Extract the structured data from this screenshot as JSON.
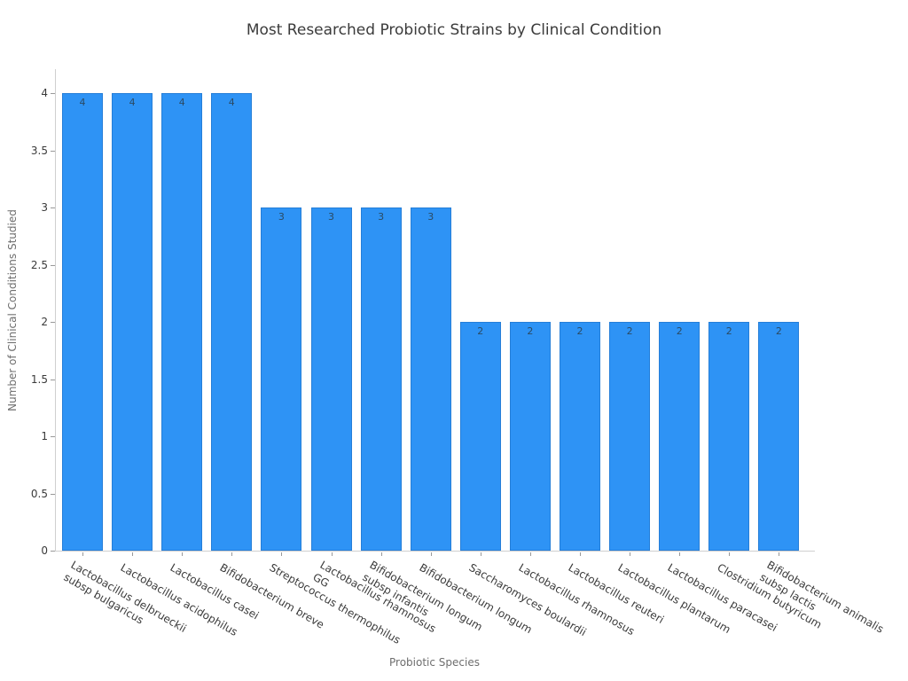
{
  "chart_data": {
    "type": "bar",
    "title": "Most Researched Probiotic Strains by Clinical Condition",
    "xlabel": "Probiotic Species",
    "ylabel": "Number of Clinical Conditions Studied",
    "categories": [
      "Lactobacillus delbrueckii\nsubsp bulgaricus",
      "Lactobacillus acidophilus",
      "Lactobacillus casei",
      "Bifidobacterium breve",
      "Streptococcus thermophilus",
      "Lactobacillus rhamnosus\nGG",
      "Bifidobacterium longum\nsubsp infantis",
      "Bifidobacterium longum",
      "Saccharomyces boulardii",
      "Lactobacillus rhamnosus",
      "Lactobacillus reuteri",
      "Lactobacillus plantarum",
      "Lactobacillus paracasei",
      "Clostridium butyricum",
      "Bifidobacterium animalis\nsubsp lactis"
    ],
    "values": [
      4,
      4,
      4,
      4,
      3,
      3,
      3,
      3,
      2,
      2,
      2,
      2,
      2,
      2,
      2
    ],
    "bar_value_labels": [
      "4",
      "4",
      "4",
      "4",
      "3",
      "3",
      "3",
      "3",
      "2",
      "2",
      "2",
      "2",
      "2",
      "2",
      "2"
    ],
    "yticks": [
      "0",
      "0.5",
      "1",
      "1.5",
      "2",
      "2.5",
      "3",
      "3.5",
      "4"
    ],
    "ylim": [
      0,
      4.2
    ],
    "grid": false,
    "legend": null,
    "x_tick_rotation_deg": 30
  },
  "colors": {
    "bar": "#2e93f5",
    "title_text": "#3b3b3b",
    "tick_text": "#3a3a3a",
    "axis_label_text": "#6e6e6e",
    "value_label_text": "#2b4a63",
    "spine": "#cfcfcf",
    "tick_mark": "#999999",
    "background": "#ffffff"
  }
}
